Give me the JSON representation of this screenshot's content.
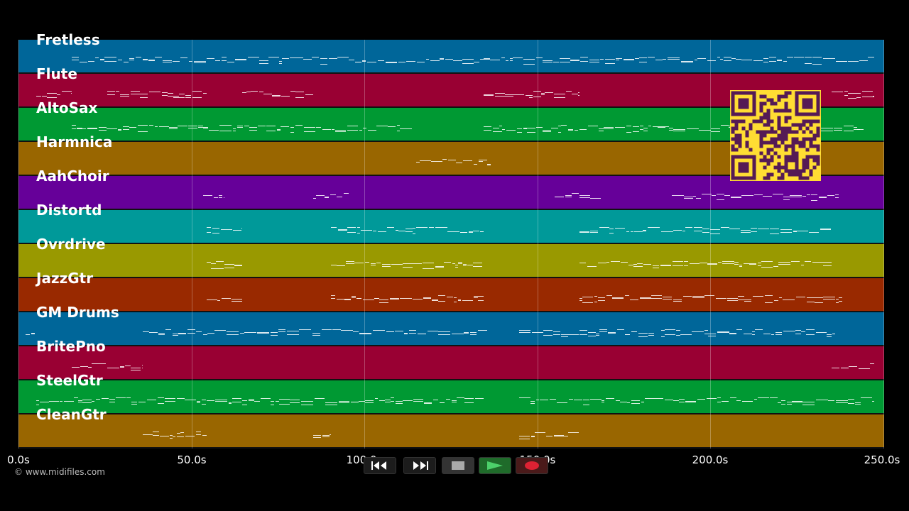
{
  "tracks": [
    {
      "label": "Fretless",
      "color": "#006699"
    },
    {
      "label": "Flute",
      "color": "#990033"
    },
    {
      "label": "AltoSax",
      "color": "#009933"
    },
    {
      "label": "Harmnica",
      "color": "#996600"
    },
    {
      "label": "AahChoir",
      "color": "#660099"
    },
    {
      "label": "Distortd",
      "color": "#009999"
    },
    {
      "label": "Ovrdrive",
      "color": "#999900"
    },
    {
      "label": "JazzGtr",
      "color": "#992900"
    },
    {
      "label": "GM Drums",
      "color": "#006699"
    },
    {
      "label": "BritePno",
      "color": "#990033"
    },
    {
      "label": "SteelGtr",
      "color": "#009933"
    },
    {
      "label": "CleanGtr",
      "color": "#996600"
    }
  ],
  "timeline": {
    "ticks": [
      "0.0s",
      "50.0s",
      "100.0s",
      "150.0s",
      "200.0s",
      "250.0s"
    ]
  },
  "copyright": "© www.midifiles.com",
  "transport": {
    "rewind_icon": "rewind-icon",
    "fast_forward_icon": "fast-forward-icon",
    "stop_icon": "stop-icon",
    "play_icon": "play-icon",
    "record_icon": "record-icon"
  },
  "colors": {
    "background": "#000000",
    "qr_background": "#ffdd33",
    "qr_modules": "#551a55",
    "play_button": "#22aa44",
    "record_button": "#dd2233"
  }
}
